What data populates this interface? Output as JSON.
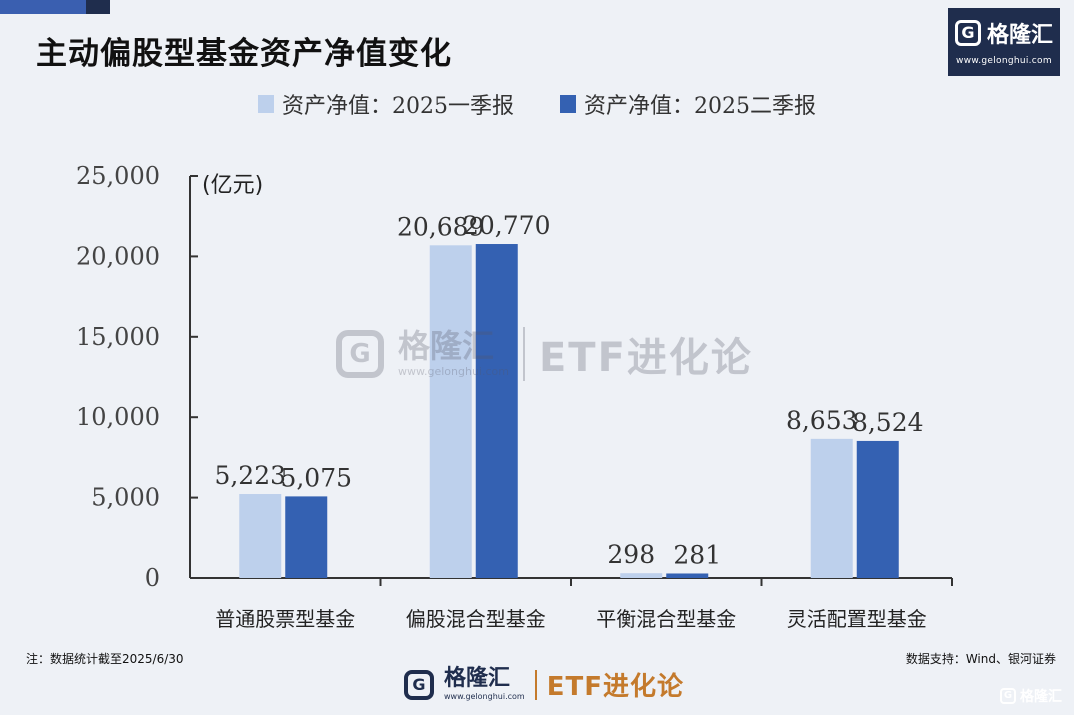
{
  "title": "主动偏股型基金资产净值变化",
  "logo": {
    "brand": "格隆汇",
    "mark": "G",
    "url": "www.gelonghui.com"
  },
  "watermark": {
    "brand": "格隆汇",
    "url": "www.gelonghui.com",
    "etf": "ETF进化论",
    "mark": "G"
  },
  "footer": {
    "note": "注：数据统计截至2025/6/30",
    "source": "数据支持：Wind、银河证券",
    "brand": "格隆汇",
    "url": "www.gelonghui.com",
    "etf": "ETF进化论",
    "mark": "G",
    "corner_brand": "格隆汇"
  },
  "colors": {
    "q1": "#bdd0ec",
    "q2": "#3461b2",
    "axis": "#333333",
    "etf": "#c47a2c",
    "logo_bg": "#1f2d4d"
  },
  "chart_data": {
    "type": "bar",
    "title": "主动偏股型基金资产净值变化",
    "ylabel": "(亿元)",
    "ylim": [
      0,
      25000
    ],
    "yticks": [
      0,
      5000,
      10000,
      15000,
      20000,
      25000
    ],
    "ytick_labels": [
      "0",
      "5,000",
      "10,000",
      "15,000",
      "20,000",
      "25,000"
    ],
    "categories": [
      "普通股票型基金",
      "偏股混合型基金",
      "平衡混合型基金",
      "灵活配置型基金"
    ],
    "series": [
      {
        "name": "资产净值：2025一季报",
        "values": [
          5223,
          20689,
          298,
          8653
        ],
        "labels": [
          "5,223",
          "20,689",
          "298",
          "8,653"
        ]
      },
      {
        "name": "资产净值：2025二季报",
        "values": [
          5075,
          20770,
          281,
          8524
        ],
        "labels": [
          "5,075",
          "20,770",
          "281",
          "8,524"
        ]
      }
    ],
    "legend_position": "top-center",
    "grid": false
  }
}
